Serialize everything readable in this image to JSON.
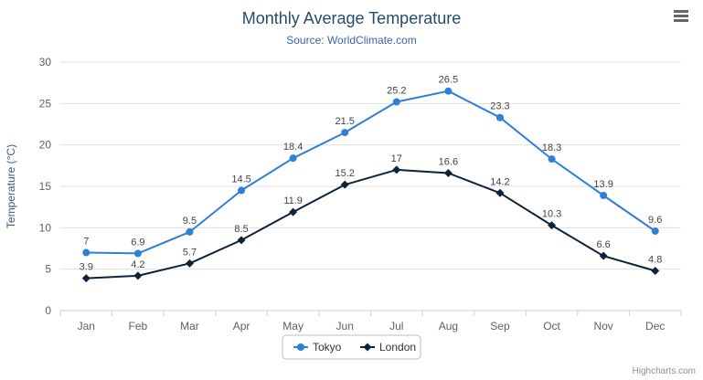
{
  "chart": {
    "credits": "Highcharts.com",
    "menu_icon": "hamburger-menu-icon"
  },
  "chart_data": {
    "type": "line",
    "title": "Monthly Average Temperature",
    "subtitle": "Source: WorldClimate.com",
    "categories": [
      "Jan",
      "Feb",
      "Mar",
      "Apr",
      "May",
      "Jun",
      "Jul",
      "Aug",
      "Sep",
      "Oct",
      "Nov",
      "Dec"
    ],
    "series": [
      {
        "name": "Tokyo",
        "color": "#2f7ed8",
        "marker": "circle",
        "values": [
          7,
          6.9,
          9.5,
          14.5,
          18.4,
          21.5,
          25.2,
          26.5,
          23.3,
          18.3,
          13.9,
          9.6
        ]
      },
      {
        "name": "London",
        "color": "#0d233a",
        "marker": "diamond",
        "values": [
          3.9,
          4.2,
          5.7,
          8.5,
          11.9,
          15.2,
          17,
          16.6,
          14.2,
          10.3,
          6.6,
          4.8
        ]
      }
    ],
    "xlabel": "",
    "ylabel": "Temperature (°C)",
    "ylim": [
      0,
      30
    ],
    "ytick_step": 5,
    "grid": true,
    "grid_color": "#e0e0e0",
    "axis_line_color": "#c9cfd6",
    "data_labels": true,
    "legend_position": "bottom-center"
  }
}
